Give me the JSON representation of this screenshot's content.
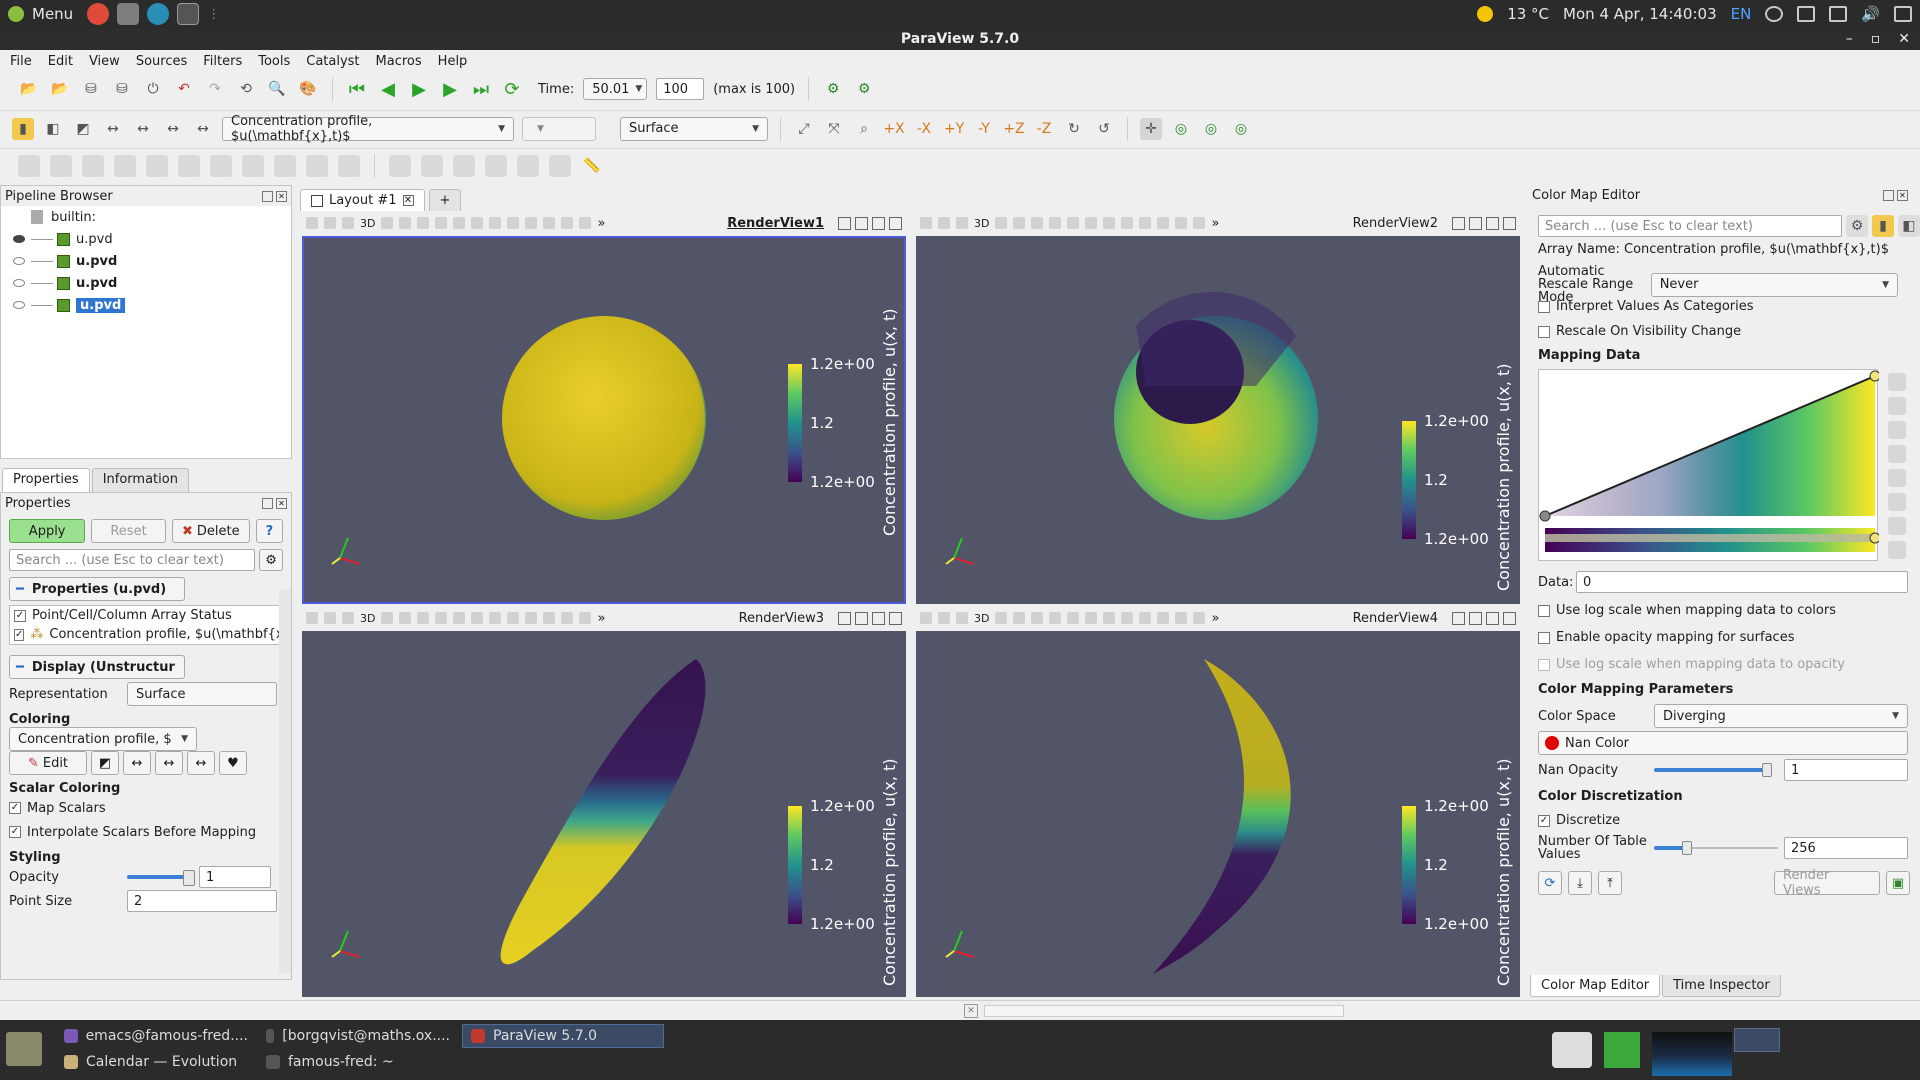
{
  "system": {
    "menu_label": "Menu",
    "weather": "13 °C",
    "datetime": "Mon  4 Apr, 14:40:03",
    "lang": "EN"
  },
  "window": {
    "title": "ParaView 5.7.0"
  },
  "menubar": [
    "File",
    "Edit",
    "View",
    "Sources",
    "Filters",
    "Tools",
    "Catalyst",
    "Macros",
    "Help"
  ],
  "toolbar1": {
    "time_label": "Time:",
    "time_value": "50.01",
    "step_value": "100",
    "max_label": "(max is 100)"
  },
  "toolbar2": {
    "color_by": "Concentration profile, $u(\\mathbf{x},t)$",
    "representation": "Surface"
  },
  "pipeline": {
    "title": "Pipeline Browser",
    "root": "builtin:",
    "items": [
      {
        "label": "u.pvd",
        "visible": true,
        "bold": false
      },
      {
        "label": "u.pvd",
        "visible": false,
        "bold": true
      },
      {
        "label": "u.pvd",
        "visible": false,
        "bold": true
      },
      {
        "label": "u.pvd",
        "visible": false,
        "bold": true
      }
    ]
  },
  "props_tabs": [
    "Properties",
    "Information"
  ],
  "properties": {
    "title": "Properties",
    "apply": "Apply",
    "reset": "Reset",
    "delete": "Delete",
    "help": "?",
    "search_placeholder": "Search ... (use Esc to clear text)",
    "section_props": "Properties (u.pvd)",
    "array_status": "Point/Cell/Column Array Status",
    "array_item": "Concentration profile, $u(\\mathbf{x",
    "section_display": "Display (Unstructur",
    "representation_label": "Representation",
    "representation_value": "Surface",
    "coloring_label": "Coloring",
    "coloring_value": "Concentration profile, $",
    "edit": "Edit",
    "scalar_coloring": "Scalar Coloring",
    "map_scalars": "Map Scalars",
    "interpolate": "Interpolate Scalars Before Mapping",
    "styling": "Styling",
    "opacity_label": "Opacity",
    "opacity_value": "1",
    "point_size_label": "Point Size",
    "point_size_value": "2"
  },
  "layout": {
    "tab": "Layout #1",
    "add": "+"
  },
  "views": [
    {
      "name": "RenderView1",
      "title": "Concentration profile, u(x, t)",
      "top": "1.2e+00",
      "mid": "1.2",
      "bottom": "1.2e+00"
    },
    {
      "name": "RenderView2",
      "title": "Concentration profile, u(x, t)",
      "top": "1.2e+00",
      "mid": "1.2",
      "bottom": "1.2e+00"
    },
    {
      "name": "RenderView3",
      "title": "Concentration profile, u(x, t)",
      "top": "1.2e+00",
      "mid": "1.2",
      "bottom": "1.2e+00"
    },
    {
      "name": "RenderView4",
      "title": "Concentration profile, u(x, t)",
      "top": "1.2e+00",
      "mid": "1.2",
      "bottom": "1.2e+00"
    }
  ],
  "view_toolbar": {
    "three_d": "3D",
    "more": "»"
  },
  "cme": {
    "title": "Color Map Editor",
    "search_placeholder": "Search ... (use Esc to clear text)",
    "array_name": "Array Name: Concentration profile, $u(\\mathbf{x},t)$",
    "auto_rescale_label": "Automatic Rescale Range Mode",
    "auto_rescale_value": "Never",
    "interpret_categories": "Interpret Values As Categories",
    "rescale_visibility": "Rescale On Visibility Change",
    "mapping_data": "Mapping Data",
    "data_label": "Data:",
    "data_value": "0",
    "log_scale": "Use log scale when mapping data to colors",
    "enable_opacity": "Enable opacity mapping for surfaces",
    "log_opacity": "Use log scale when mapping data to opacity",
    "params_title": "Color Mapping Parameters",
    "color_space_label": "Color Space",
    "color_space_value": "Diverging",
    "nan_color": "Nan Color",
    "nan_opacity_label": "Nan Opacity",
    "nan_opacity_value": "1",
    "discretization": "Color Discretization",
    "discretize": "Discretize",
    "table_values_label": "Number Of Table Values",
    "table_values_value": "256",
    "render_views": "Render Views",
    "bottom_tabs": [
      "Color Map Editor",
      "Time Inspector"
    ]
  },
  "taskbar": {
    "tasks": [
      {
        "label": "emacs@famous-fred...."
      },
      {
        "label": "[borgqvist@maths.ox...."
      },
      {
        "label": "ParaView 5.7.0"
      },
      {
        "label": "Calendar — Evolution"
      },
      {
        "label": "famous-fred: ~"
      }
    ]
  },
  "colors": {
    "viewport": "#525468",
    "selection": "#2f76d2",
    "apply_green": "#9be08f",
    "active_view_border": "#4d5bdf"
  }
}
